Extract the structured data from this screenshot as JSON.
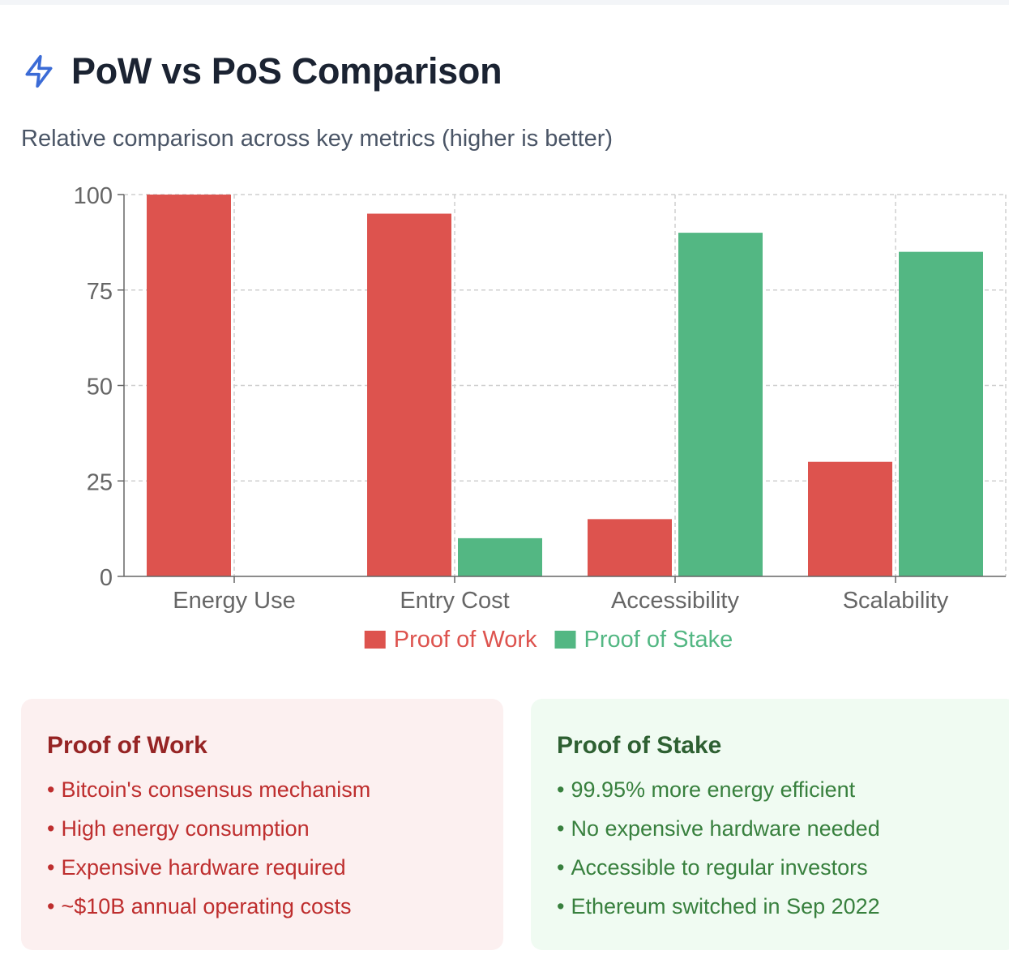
{
  "header": {
    "icon": "lightning-icon",
    "title": "PoW vs PoS Comparison",
    "subtitle": "Relative comparison across key metrics (higher is better)"
  },
  "colors": {
    "pow": "#dd534e",
    "pos": "#53b783",
    "accent": "#3b6bd6"
  },
  "chart_data": {
    "type": "bar",
    "categories": [
      "Energy Use",
      "Entry Cost",
      "Accessibility",
      "Scalability"
    ],
    "series": [
      {
        "name": "Proof of Work",
        "values": [
          100,
          95,
          15,
          30
        ]
      },
      {
        "name": "Proof of Stake",
        "values": [
          0,
          10,
          90,
          85
        ]
      }
    ],
    "yticks": [
      0,
      25,
      50,
      75,
      100
    ],
    "ylim": [
      0,
      100
    ],
    "grid": true,
    "legend": "bottom"
  },
  "cards": {
    "pow": {
      "title": "Proof of Work",
      "items": [
        "Bitcoin's consensus mechanism",
        "High energy consumption",
        "Expensive hardware required",
        "~$10B annual operating costs"
      ]
    },
    "pos": {
      "title": "Proof of Stake",
      "items": [
        "99.95% more energy efficient",
        "No expensive hardware needed",
        "Accessible to regular investors",
        "Ethereum switched in Sep 2022"
      ]
    }
  }
}
